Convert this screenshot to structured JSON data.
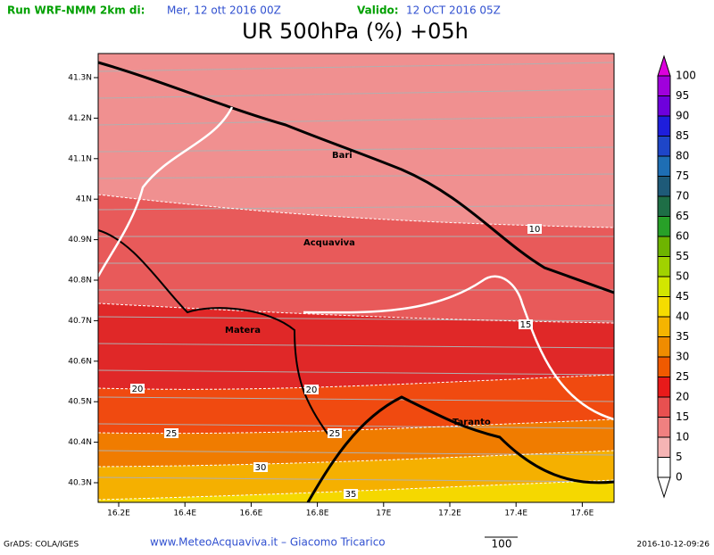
{
  "header": {
    "run_label": "Run WRF-NMM 2km di:",
    "run_date": "Mer, 12 ott 2016 00Z",
    "valid_label": "Valido:",
    "valid_date": "12 OCT 2016 05Z",
    "title": "UR 500hPa (%) +05h"
  },
  "map": {
    "xticks": [
      "16.2E",
      "16.4E",
      "16.6E",
      "16.8E",
      "17E",
      "17.2E",
      "17.4E",
      "17.6E"
    ],
    "yticks": [
      "41.3N",
      "41.2N",
      "41.1N",
      "41N",
      "40.9N",
      "40.8N",
      "40.7N",
      "40.6N",
      "40.5N",
      "40.4N",
      "40.3N"
    ],
    "places": [
      "Bari",
      "Acquaviva",
      "Matera",
      "Taranto"
    ],
    "contour_labels": [
      "10",
      "15",
      "20",
      "20",
      "25",
      "25",
      "30",
      "35"
    ]
  },
  "colorbar": {
    "labels": [
      100,
      95,
      90,
      85,
      80,
      75,
      70,
      65,
      60,
      55,
      50,
      45,
      40,
      35,
      30,
      25,
      20,
      15,
      10,
      5,
      0
    ],
    "colors": [
      "#dc00dc",
      "#a000dc",
      "#6e00dc",
      "#1e1edc",
      "#1e46c8",
      "#1e6eb4",
      "#1e5a78",
      "#1e6e46",
      "#28a028",
      "#6eb400",
      "#a0d200",
      "#d2e600",
      "#f5dc00",
      "#f5b400",
      "#f08c00",
      "#f05a00",
      "#e81a1a",
      "#e85050",
      "#f08080",
      "#f5b4b4",
      "#ffffff"
    ]
  },
  "footer": {
    "credit": "GrADS: COLA/IGES",
    "site": "www.MeteoAcquaviva.it – Giacomo Tricarico",
    "vector_scale": "100",
    "timestamp": "2016-10-12-09:26"
  }
}
